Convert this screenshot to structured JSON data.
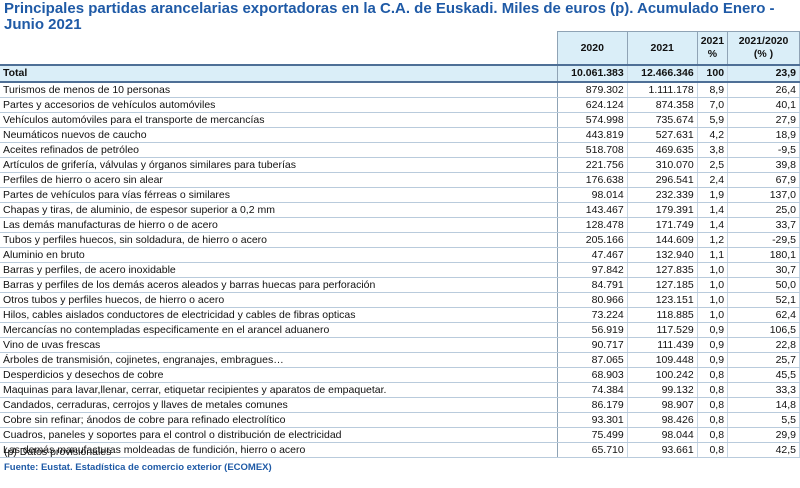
{
  "title": "Principales partidas arancelarias exportadoras en la C.A. de Euskadi. Miles de euros (p). Acumulado Enero - Junio 2021",
  "columns": {
    "y2020": "2020",
    "y2021": "2021",
    "pct_year": "2021",
    "pct_sym": "%",
    "ratio": "2021/2020",
    "ratio_unit": "(% )"
  },
  "total": {
    "label": "Total",
    "v2020": "10.061.383",
    "v2021": "12.466.346",
    "pct": "100",
    "change": "23,9"
  },
  "rows": [
    {
      "label": "Turismos de menos de  10 personas",
      "v2020": "879.302",
      "v2021": "1.111.178",
      "pct": "8,9",
      "change": "26,4"
    },
    {
      "label": "Partes y accesorios de vehículos automóviles",
      "v2020": "624.124",
      "v2021": "874.358",
      "pct": "7,0",
      "change": "40,1"
    },
    {
      "label": "Vehículos automóviles para el transporte de mercancías",
      "v2020": "574.998",
      "v2021": "735.674",
      "pct": "5,9",
      "change": "27,9"
    },
    {
      "label": "Neumáticos nuevos de caucho",
      "v2020": "443.819",
      "v2021": "527.631",
      "pct": "4,2",
      "change": "18,9"
    },
    {
      "label": "Aceites refinados de petróleo",
      "v2020": "518.708",
      "v2021": "469.635",
      "pct": "3,8",
      "change": "-9,5"
    },
    {
      "label": "Artículos de grifería, válvulas y órganos similares para tuberías",
      "v2020": "221.756",
      "v2021": "310.070",
      "pct": "2,5",
      "change": "39,8"
    },
    {
      "label": "Perfiles de hierro o acero sin alear",
      "v2020": "176.638",
      "v2021": "296.541",
      "pct": "2,4",
      "change": "67,9"
    },
    {
      "label": "Partes de vehículos para vías férreas o similares",
      "v2020": "98.014",
      "v2021": "232.339",
      "pct": "1,9",
      "change": "137,0"
    },
    {
      "label": "Chapas y tiras, de aluminio, de espesor superior a 0,2 mm",
      "v2020": "143.467",
      "v2021": "179.391",
      "pct": "1,4",
      "change": "25,0"
    },
    {
      "label": "Las demás manufacturas de hierro o de acero",
      "v2020": "128.478",
      "v2021": "171.749",
      "pct": "1,4",
      "change": "33,7"
    },
    {
      "label": "Tubos y perfiles huecos, sin soldadura, de hierro o acero",
      "v2020": "205.166",
      "v2021": "144.609",
      "pct": "1,2",
      "change": "-29,5"
    },
    {
      "label": "Aluminio en bruto",
      "v2020": "47.467",
      "v2021": "132.940",
      "pct": "1,1",
      "change": "180,1"
    },
    {
      "label": "Barras y perfiles, de acero inoxidable",
      "v2020": "97.842",
      "v2021": "127.835",
      "pct": "1,0",
      "change": "30,7"
    },
    {
      "label": "Barras y perfiles de los demás aceros aleados y barras huecas para perforación",
      "v2020": "84.791",
      "v2021": "127.185",
      "pct": "1,0",
      "change": "50,0"
    },
    {
      "label": "Otros tubos y perfiles huecos, de hierro o acero",
      "v2020": "80.966",
      "v2021": "123.151",
      "pct": "1,0",
      "change": "52,1"
    },
    {
      "label": "Hilos, cables aislados conductores de electricidad y cables de fibras opticas",
      "v2020": "73.224",
      "v2021": "118.885",
      "pct": "1,0",
      "change": "62,4"
    },
    {
      "label": "Mercancías no contempladas especificamente en el arancel aduanero",
      "v2020": "56.919",
      "v2021": "117.529",
      "pct": "0,9",
      "change": "106,5"
    },
    {
      "label": "Vino de uvas frescas",
      "v2020": "90.717",
      "v2021": "111.439",
      "pct": "0,9",
      "change": "22,8"
    },
    {
      "label": "Árboles de transmisión, cojinetes, engranajes, embragues…",
      "v2020": "87.065",
      "v2021": "109.448",
      "pct": "0,9",
      "change": "25,7"
    },
    {
      "label": "Desperdicios y desechos de cobre",
      "v2020": "68.903",
      "v2021": "100.242",
      "pct": "0,8",
      "change": "45,5"
    },
    {
      "label": "Maquinas para lavar,llenar, cerrar, etiquetar recipientes  y aparatos de empaquetar.",
      "v2020": "74.384",
      "v2021": "99.132",
      "pct": "0,8",
      "change": "33,3"
    },
    {
      "label": "Candados, cerraduras, cerrojos y llaves de metales comunes",
      "v2020": "86.179",
      "v2021": "98.907",
      "pct": "0,8",
      "change": "14,8"
    },
    {
      "label": "Cobre sin refinar; ánodos de cobre para refinado electrolítico",
      "v2020": "93.301",
      "v2021": "98.426",
      "pct": "0,8",
      "change": "5,5"
    },
    {
      "label": "Cuadros, paneles y soportes para el control o distribución de electricidad",
      "v2020": "75.499",
      "v2021": "98.044",
      "pct": "0,8",
      "change": "29,9"
    },
    {
      "label": "Las demás manufacturas moldeadas de fundición, hierro o acero",
      "v2020": "65.710",
      "v2021": "93.661",
      "pct": "0,8",
      "change": "42,5"
    }
  ],
  "note": "(p) Datos provisionales",
  "source": "Fuente: Eustat. Estadística de comercio exterior (ECOMEX)"
}
